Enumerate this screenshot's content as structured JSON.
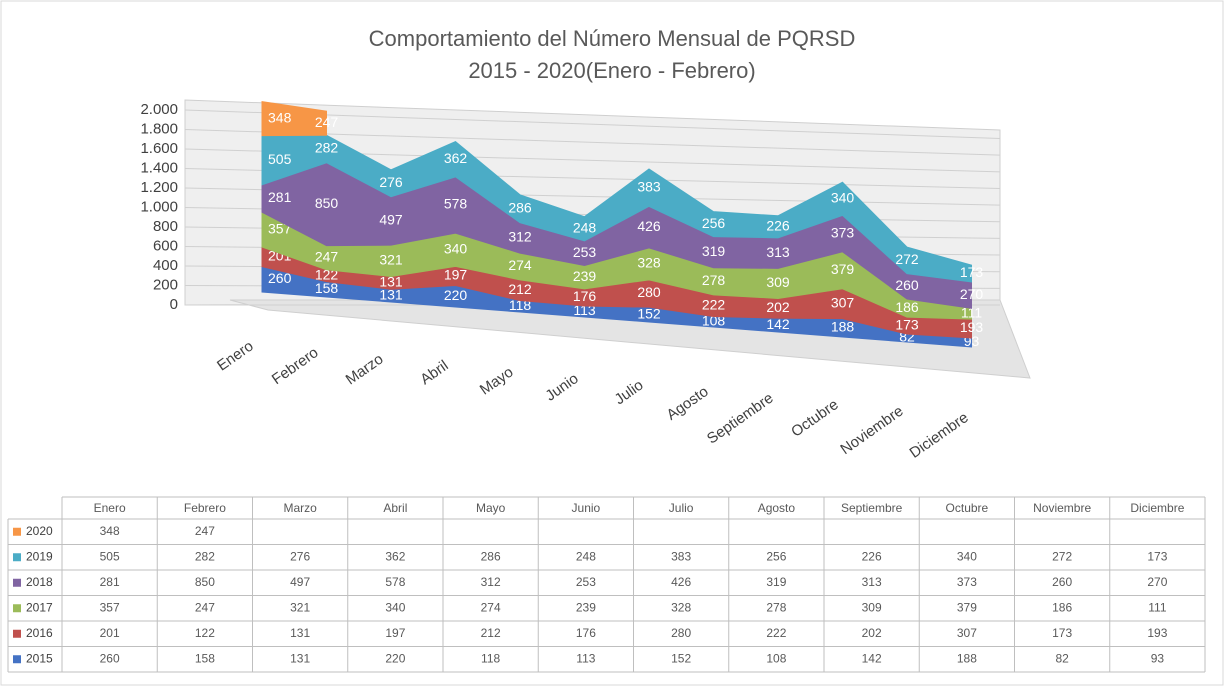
{
  "chart_data": {
    "type": "area",
    "title": "Comportamiento del Número Mensual de PQRSD",
    "subtitle": "2015 - 2020(Enero - Febrero)",
    "categories": [
      "Enero",
      "Febrero",
      "Marzo",
      "Abril",
      "Mayo",
      "Junio",
      "Julio",
      "Agosto",
      "Septiembre",
      "Octubre",
      "Noviembre",
      "Diciembre"
    ],
    "series": [
      {
        "name": "2015",
        "color": "#4472c4",
        "values": [
          260,
          158,
          131,
          220,
          118,
          113,
          152,
          108,
          142,
          188,
          82,
          93
        ]
      },
      {
        "name": "2016",
        "color": "#c0504d",
        "values": [
          201,
          122,
          131,
          197,
          212,
          176,
          280,
          222,
          202,
          307,
          173,
          193
        ]
      },
      {
        "name": "2017",
        "color": "#9bbb59",
        "values": [
          357,
          247,
          321,
          340,
          274,
          239,
          328,
          278,
          309,
          379,
          186,
          111
        ]
      },
      {
        "name": "2018",
        "color": "#8064a2",
        "values": [
          281,
          850,
          497,
          578,
          312,
          253,
          426,
          319,
          313,
          373,
          260,
          270
        ]
      },
      {
        "name": "2019",
        "color": "#4bacc6",
        "values": [
          505,
          282,
          276,
          362,
          286,
          248,
          383,
          256,
          226,
          340,
          272,
          173
        ]
      },
      {
        "name": "2020",
        "color": "#f79646",
        "values": [
          348,
          247,
          null,
          null,
          null,
          null,
          null,
          null,
          null,
          null,
          null,
          null
        ]
      }
    ],
    "ylim": [
      0,
      2000
    ],
    "yticks": [
      0,
      200,
      400,
      600,
      800,
      {
        "value": 1000,
        "label": "1.000"
      },
      {
        "value": 1200,
        "label": "1.200"
      },
      {
        "value": 1400,
        "label": "1.400"
      },
      {
        "value": 1600,
        "label": "1.600"
      },
      {
        "value": 1800,
        "label": "1.800"
      },
      {
        "value": 2000,
        "label": "2.000"
      }
    ],
    "grid": true,
    "data_table": true
  }
}
